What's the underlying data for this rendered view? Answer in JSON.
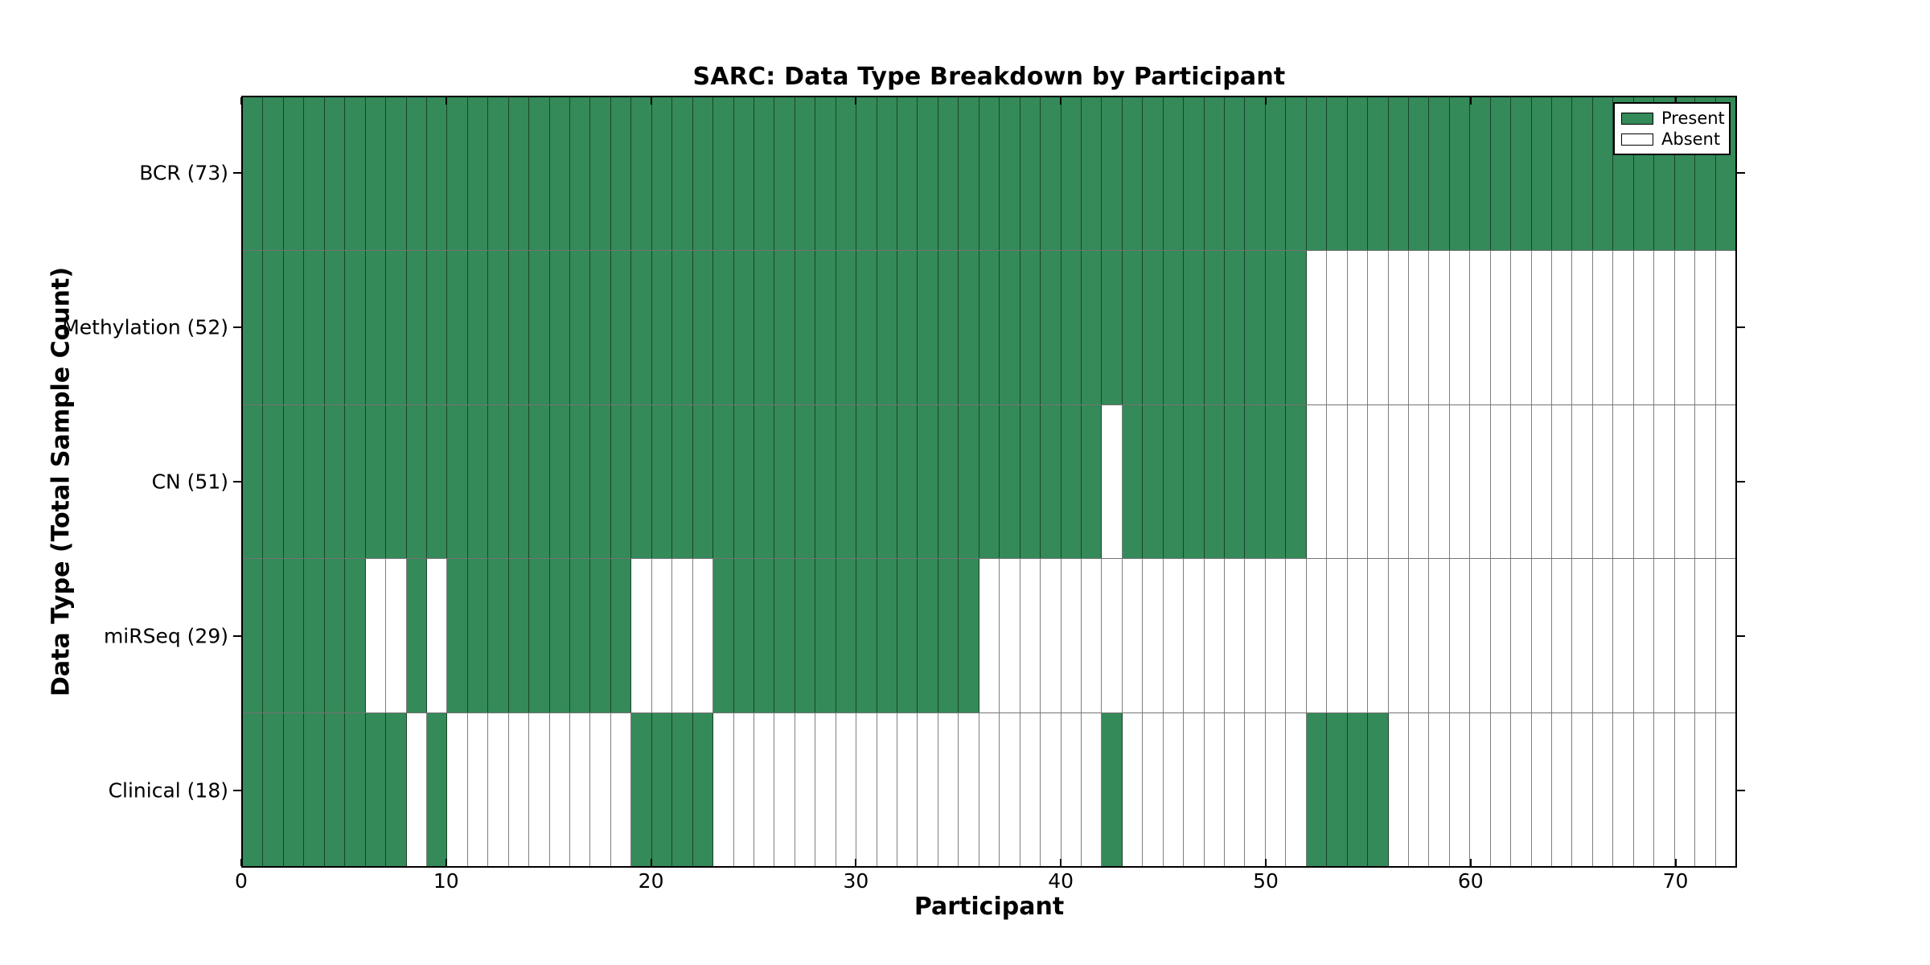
{
  "chart_data": {
    "type": "heatmap",
    "title": "SARC: Data Type Breakdown by Participant",
    "xlabel": "Participant",
    "ylabel": "Data Type (Total Sample Count)",
    "xlim": [
      0,
      73
    ],
    "n_participants": 73,
    "x_ticks": [
      0,
      10,
      20,
      30,
      40,
      50,
      60,
      70
    ],
    "grid": "cell-borders",
    "legend": [
      "Present",
      "Absent"
    ],
    "legend_position": "upper right",
    "colors": {
      "present": "#348a58",
      "absent": "#ffffff",
      "spine": "#000000",
      "text": "#000000"
    },
    "rows": [
      {
        "label": "BCR (73)",
        "total_samples": 73,
        "present_ranges": [
          [
            0,
            73
          ]
        ]
      },
      {
        "label": "Methylation (52)",
        "total_samples": 52,
        "present_ranges": [
          [
            0,
            52
          ]
        ]
      },
      {
        "label": "CN (51)",
        "total_samples": 51,
        "present_ranges": [
          [
            0,
            42
          ],
          [
            43,
            52
          ]
        ]
      },
      {
        "label": "miRSeq (29)",
        "total_samples": 29,
        "present_ranges": [
          [
            0,
            6
          ],
          [
            8,
            9
          ],
          [
            10,
            19
          ],
          [
            23,
            36
          ]
        ]
      },
      {
        "label": "Clinical (18)",
        "total_samples": 18,
        "present_ranges": [
          [
            0,
            8
          ],
          [
            9,
            10
          ],
          [
            19,
            23
          ],
          [
            42,
            43
          ],
          [
            52,
            56
          ]
        ]
      }
    ]
  }
}
